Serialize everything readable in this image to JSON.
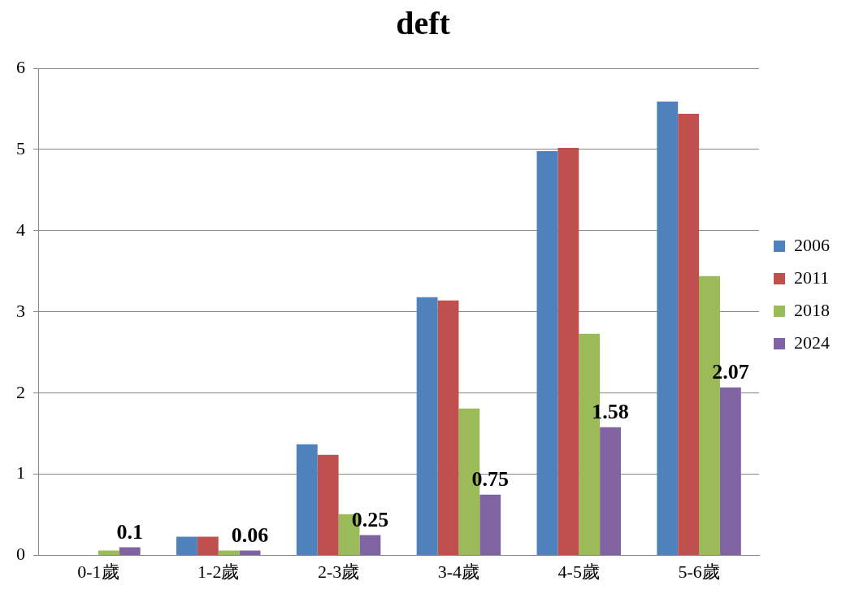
{
  "chart_data": {
    "type": "bar",
    "title": "deft",
    "categories": [
      "0-1歲",
      "1-2歲",
      "2-3歲",
      "3-4歲",
      "4-5歲",
      "5-6歲"
    ],
    "series": [
      {
        "name": "2006",
        "color": "#4f81bd",
        "values": [
          null,
          0.23,
          1.37,
          3.18,
          4.98,
          5.59
        ]
      },
      {
        "name": "2011",
        "color": "#c0504d",
        "values": [
          null,
          0.23,
          1.24,
          3.14,
          5.02,
          5.44
        ]
      },
      {
        "name": "2018",
        "color": "#9bbb59",
        "values": [
          0.06,
          0.06,
          0.51,
          1.81,
          2.73,
          3.44
        ]
      },
      {
        "name": "2024",
        "color": "#8064a2",
        "values": [
          0.1,
          0.06,
          0.25,
          0.75,
          1.58,
          2.07
        ],
        "value_labels": [
          "0.1",
          "0.06",
          "0.25",
          "0.75",
          "1.58",
          "2.07"
        ]
      }
    ],
    "ylim": [
      0,
      6
    ],
    "yticks": [
      0,
      1,
      2,
      3,
      4,
      5,
      6
    ],
    "grid": "y",
    "legend": "right"
  }
}
